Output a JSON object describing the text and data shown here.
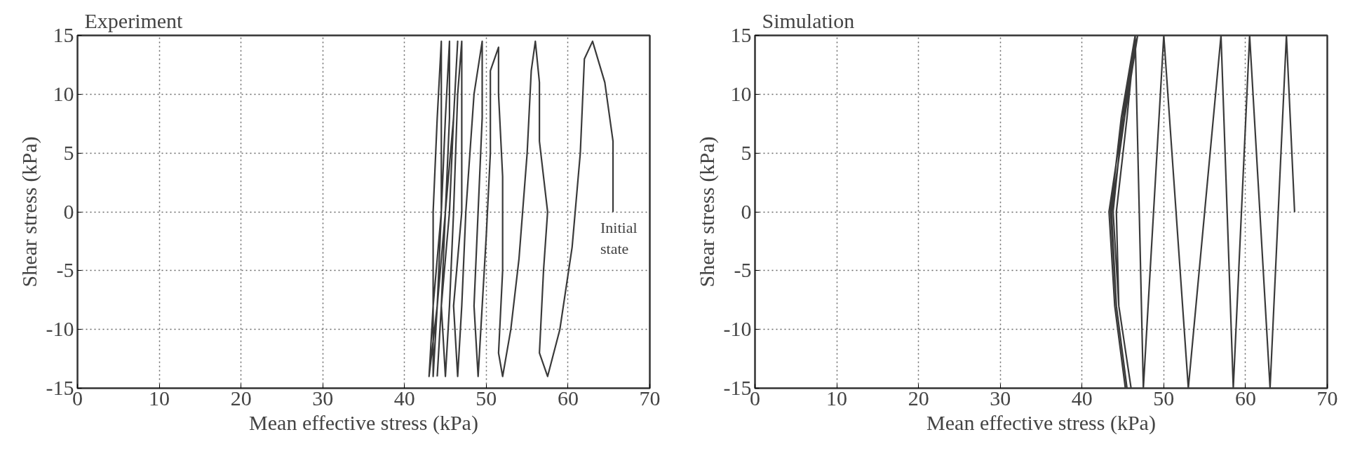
{
  "chart_data": [
    {
      "type": "line",
      "title": "Experiment",
      "xlabel": "Mean effective stress (kPa)",
      "ylabel": "Shear stress (kPa)",
      "xlim": [
        0,
        70
      ],
      "ylim": [
        -15,
        15
      ],
      "xticks": [
        0,
        10,
        20,
        30,
        40,
        50,
        60,
        70
      ],
      "yticks": [
        -15,
        -10,
        -5,
        0,
        5,
        10,
        15
      ],
      "grid": true,
      "line_style": "solid",
      "marker": "none",
      "series": [
        {
          "color": "#3a3a3a",
          "x": [
            65.5,
            65.5,
            64.5,
            63,
            62,
            61.5,
            60.5,
            59,
            57.5,
            56.5,
            57,
            57.5,
            56.5,
            56.5,
            56,
            55.5,
            55,
            54,
            53,
            52,
            51.5,
            52,
            52,
            51.5,
            51.5,
            50.5,
            50.5,
            50,
            49.5,
            49,
            48.5,
            49,
            49.5,
            49.5,
            48.5,
            47.5,
            47,
            46.5,
            46,
            47,
            47,
            47,
            46.5,
            46,
            45.5,
            45,
            44.5,
            45,
            45.5,
            45.5,
            45,
            44.5,
            44,
            43.5,
            43.5,
            44.5,
            44.5,
            44.5,
            44,
            43.5,
            43.5,
            43,
            44,
            45,
            46,
            46.5,
            46,
            45.5,
            44.5,
            44
          ],
          "values": [
            0,
            6,
            11,
            14.5,
            13,
            5,
            -3,
            -10,
            -14,
            -12,
            -5,
            0,
            6,
            11,
            14.5,
            12,
            5,
            -4,
            -10,
            -14,
            -12,
            -5,
            3,
            10,
            14,
            12,
            5,
            -2,
            -8,
            -14,
            -8,
            0,
            8,
            14.5,
            10,
            0,
            -8,
            -14,
            -8,
            0,
            8,
            14.5,
            10,
            0,
            -8,
            -14,
            -8,
            0,
            8,
            14.5,
            8,
            0,
            -8,
            -14,
            -8,
            0,
            8,
            14.5,
            8,
            0,
            -8,
            -14,
            -8,
            0,
            8,
            14.5,
            8,
            0,
            -8,
            -14
          ]
        }
      ],
      "annotations": [
        {
          "text": "Initial\nstate",
          "x": 65.5,
          "y": 0
        }
      ]
    },
    {
      "type": "line",
      "title": "Simulation",
      "xlabel": "Mean effective stress (kPa)",
      "ylabel": "Shear stress (kPa)",
      "xlim": [
        0,
        70
      ],
      "ylim": [
        -15,
        15
      ],
      "xticks": [
        0,
        10,
        20,
        30,
        40,
        50,
        60,
        70
      ],
      "yticks": [
        -15,
        -10,
        -5,
        0,
        5,
        10,
        15
      ],
      "grid": true,
      "line_style": "solid",
      "marker": "none",
      "series": [
        {
          "color": "#3a3a3a",
          "x": [
            66,
            65,
            63,
            60.5,
            58.5,
            57,
            53,
            50,
            47.5,
            46.5,
            45.5,
            44.2,
            44.5,
            46,
            44.5,
            43.8,
            45,
            46.8,
            45.2,
            43.6,
            44.2,
            45.5,
            44.2,
            43.5,
            44.8,
            46.5,
            45,
            43.3,
            44,
            45.3
          ],
          "values": [
            0,
            15,
            -15,
            15,
            -15,
            15,
            -15,
            15,
            -15,
            15,
            8,
            0,
            -8,
            -15,
            -8,
            0,
            8,
            15,
            8,
            0,
            -8,
            -15,
            -8,
            0,
            8,
            15,
            8,
            0,
            -8,
            -15
          ]
        }
      ]
    }
  ]
}
